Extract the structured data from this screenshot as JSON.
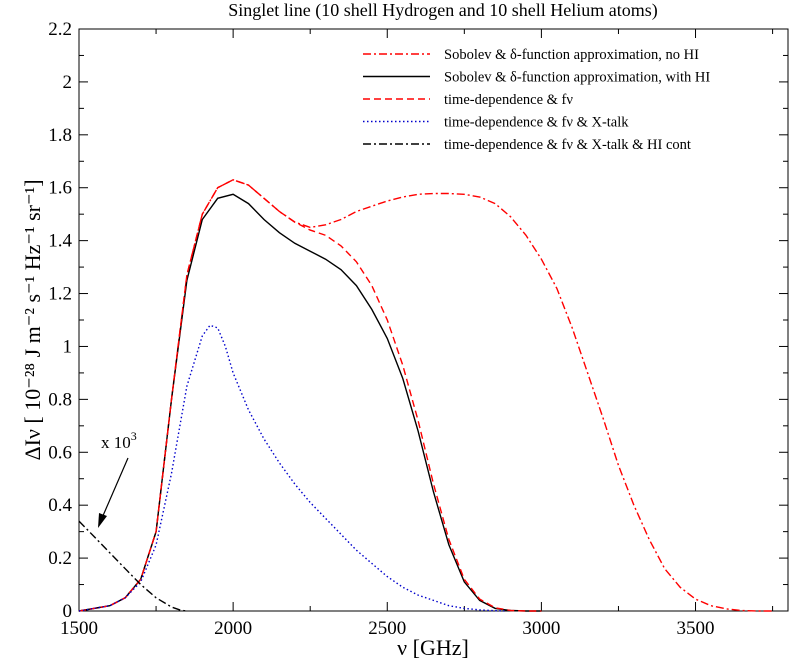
{
  "chart_data": {
    "type": "line",
    "title": "Singlet line (10 shell Hydrogen and 10 shell Helium atoms)",
    "xlabel": "ν  [GHz]",
    "ylabel": "ΔIν [ 10⁻²⁸ J m⁻² s⁻¹ Hz⁻¹ sr⁻¹]",
    "xlim": [
      1500,
      3800
    ],
    "ylim": [
      0,
      2.2
    ],
    "x_ticks": [
      1500,
      2000,
      2500,
      3000,
      3500
    ],
    "y_ticks": [
      0,
      0.2,
      0.4,
      0.6,
      0.8,
      1,
      1.2,
      1.4,
      1.6,
      1.8,
      2,
      2.2
    ],
    "grid": false,
    "legend_position": "top-right",
    "annotation": {
      "text": "x 10",
      "superscript": "3"
    },
    "series": [
      {
        "name": "Sobolev & δ-function approximation, no HI",
        "color": "#ff0000",
        "dash": "dash-dot",
        "x": [
          1500,
          1600,
          1650,
          1700,
          1750,
          1800,
          1850,
          1900,
          1950,
          2000,
          2050,
          2100,
          2150,
          2200,
          2250,
          2300,
          2350,
          2400,
          2450,
          2500,
          2550,
          2600,
          2650,
          2700,
          2750,
          2800,
          2850,
          2900,
          2950,
          3000,
          3050,
          3100,
          3150,
          3200,
          3250,
          3300,
          3350,
          3400,
          3450,
          3500,
          3550,
          3600,
          3650,
          3700,
          3750
        ],
        "y": [
          0.0,
          0.02,
          0.05,
          0.12,
          0.3,
          0.8,
          1.27,
          1.5,
          1.6,
          1.63,
          1.61,
          1.56,
          1.51,
          1.47,
          1.45,
          1.46,
          1.48,
          1.51,
          1.53,
          1.55,
          1.565,
          1.575,
          1.578,
          1.578,
          1.575,
          1.565,
          1.54,
          1.49,
          1.42,
          1.33,
          1.22,
          1.07,
          0.9,
          0.73,
          0.55,
          0.4,
          0.27,
          0.16,
          0.09,
          0.045,
          0.02,
          0.008,
          0.002,
          0.0,
          0.0
        ]
      },
      {
        "name": "Sobolev & δ-function approximation, with HI",
        "color": "#000000",
        "dash": "solid",
        "x": [
          1500,
          1600,
          1650,
          1700,
          1750,
          1800,
          1850,
          1900,
          1950,
          2000,
          2050,
          2100,
          2150,
          2200,
          2250,
          2300,
          2350,
          2400,
          2450,
          2500,
          2550,
          2600,
          2650,
          2700,
          2750,
          2800,
          2850,
          2900,
          2950,
          3000
        ],
        "y": [
          0.0,
          0.02,
          0.05,
          0.12,
          0.3,
          0.8,
          1.25,
          1.48,
          1.56,
          1.575,
          1.54,
          1.48,
          1.43,
          1.39,
          1.36,
          1.33,
          1.29,
          1.23,
          1.14,
          1.03,
          0.88,
          0.68,
          0.45,
          0.25,
          0.11,
          0.04,
          0.01,
          0.002,
          0.0,
          0.0
        ]
      },
      {
        "name": "time-dependence & fν",
        "color": "#ff0000",
        "dash": "dashed",
        "x": [
          1500,
          1600,
          1650,
          1700,
          1750,
          1800,
          1850,
          1900,
          1950,
          2000,
          2050,
          2100,
          2150,
          2200,
          2250,
          2300,
          2350,
          2400,
          2450,
          2500,
          2550,
          2600,
          2650,
          2700,
          2750,
          2800,
          2850,
          2900,
          2950,
          3000
        ],
        "y": [
          0.0,
          0.02,
          0.05,
          0.12,
          0.3,
          0.8,
          1.27,
          1.5,
          1.6,
          1.63,
          1.61,
          1.56,
          1.51,
          1.47,
          1.44,
          1.42,
          1.38,
          1.32,
          1.23,
          1.1,
          0.93,
          0.72,
          0.48,
          0.27,
          0.12,
          0.045,
          0.012,
          0.002,
          0.0,
          0.0
        ]
      },
      {
        "name": "time-dependence & fν & X-talk",
        "color": "#0000cc",
        "dash": "dotted",
        "x": [
          1500,
          1600,
          1650,
          1700,
          1750,
          1800,
          1850,
          1900,
          1925,
          1950,
          1975,
          2000,
          2050,
          2100,
          2150,
          2200,
          2250,
          2300,
          2350,
          2400,
          2450,
          2500,
          2550,
          2600,
          2650,
          2700,
          2750,
          2800,
          2850,
          2880
        ],
        "y": [
          0.0,
          0.02,
          0.05,
          0.11,
          0.25,
          0.52,
          0.85,
          1.04,
          1.08,
          1.07,
          1.0,
          0.9,
          0.76,
          0.65,
          0.56,
          0.48,
          0.41,
          0.35,
          0.29,
          0.23,
          0.18,
          0.13,
          0.09,
          0.06,
          0.04,
          0.02,
          0.01,
          0.004,
          0.001,
          0.0
        ]
      },
      {
        "name": "time-dependence & fν & X-talk & HI cont",
        "color": "#000000",
        "dash": "dash-dot",
        "x": [
          1500,
          1550,
          1600,
          1650,
          1700,
          1750,
          1800,
          1830,
          1850
        ],
        "y": [
          0.34,
          0.28,
          0.22,
          0.16,
          0.1,
          0.05,
          0.015,
          0.003,
          0.0
        ]
      }
    ]
  }
}
